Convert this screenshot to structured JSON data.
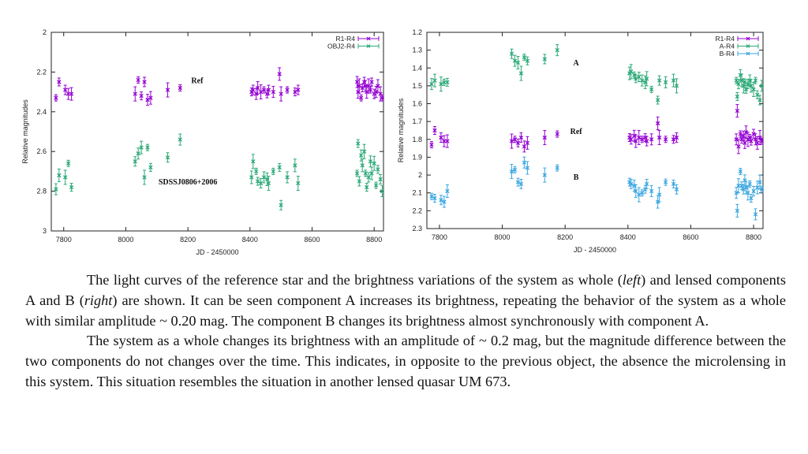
{
  "charts": {
    "left": {
      "ylabel": "Relative magnitudes",
      "xlabel": "JD - 2450000",
      "colors": {
        "R1-R4": "#9400d3",
        "OBJ2-R4": "#2aa876"
      },
      "annotations": [
        {
          "text": "Ref",
          "x": 8230,
          "y": 2.255
        },
        {
          "text": "SDSSJ0806+2006",
          "x": 8200,
          "y": 2.765
        }
      ]
    },
    "right": {
      "ylabel": "Relative magnitudes",
      "xlabel": "JD - 2450000",
      "colors": {
        "R1-R4": "#9400d3",
        "A-R4": "#2aa876",
        "B-R4": "#3aa6e0"
      },
      "annotations": [
        {
          "text": "A",
          "x": 8235,
          "y": 1.385
        },
        {
          "text": "Ref",
          "x": 8235,
          "y": 1.77
        },
        {
          "text": "B",
          "x": 8235,
          "y": 2.025
        }
      ]
    }
  },
  "chart_data": [
    {
      "type": "scatter",
      "xlabel": "JD - 2450000",
      "ylabel": "Relative magnitudes",
      "xlim": [
        7760,
        8830
      ],
      "ylim": [
        3,
        2
      ],
      "y_inverted": true,
      "xticks": [
        "7800",
        "8000",
        "8200",
        "8400",
        "8600",
        "8800"
      ],
      "yticks": [
        "2",
        "2.2",
        "2.4",
        "2.6",
        "2.8",
        "3"
      ],
      "legend_position": "top-right",
      "grid": false,
      "series": [
        {
          "name": "R1-R4",
          "x": [
            7775,
            7785,
            7805,
            7815,
            7825,
            8030,
            8040,
            8050,
            8060,
            8070,
            8080,
            8135,
            8175,
            8405,
            8410,
            8420,
            8425,
            8435,
            8445,
            8455,
            8460,
            8475,
            8495,
            8500,
            8520,
            8545,
            8555,
            8745,
            8748,
            8752,
            8758,
            8762,
            8768,
            8772,
            8776,
            8782,
            8788,
            8792,
            8800,
            8806,
            8812,
            8820,
            8826
          ],
          "y": [
            2.33,
            2.25,
            2.29,
            2.31,
            2.31,
            2.31,
            2.24,
            2.32,
            2.25,
            2.34,
            2.33,
            2.29,
            2.28,
            2.3,
            2.29,
            2.31,
            2.28,
            2.3,
            2.29,
            2.31,
            2.29,
            2.3,
            2.21,
            2.31,
            2.29,
            2.3,
            2.29,
            2.25,
            2.3,
            2.27,
            2.33,
            2.28,
            2.25,
            2.27,
            2.3,
            2.27,
            2.29,
            2.25,
            2.31,
            2.3,
            2.27,
            2.31,
            2.33
          ]
        },
        {
          "name": "OBJ2-R4",
          "x": [
            7775,
            7785,
            7805,
            7815,
            7825,
            8030,
            8040,
            8050,
            8060,
            8070,
            8080,
            8135,
            8175,
            8405,
            8410,
            8420,
            8425,
            8435,
            8445,
            8455,
            8460,
            8475,
            8495,
            8500,
            8520,
            8545,
            8555,
            8745,
            8748,
            8752,
            8758,
            8762,
            8768,
            8772,
            8776,
            8782,
            8788,
            8792,
            8800,
            8806,
            8812,
            8820,
            8826
          ],
          "y": [
            2.79,
            2.72,
            2.73,
            2.66,
            2.78,
            2.65,
            2.61,
            2.58,
            2.73,
            2.58,
            2.68,
            2.63,
            2.54,
            2.73,
            2.65,
            2.7,
            2.75,
            2.76,
            2.73,
            2.74,
            2.76,
            2.7,
            2.68,
            2.87,
            2.73,
            2.67,
            2.76,
            2.71,
            2.56,
            2.75,
            2.62,
            2.67,
            2.6,
            2.71,
            2.78,
            2.73,
            2.65,
            2.71,
            2.66,
            2.77,
            2.69,
            2.74,
            2.8
          ]
        }
      ]
    },
    {
      "type": "scatter",
      "xlabel": "JD - 2450000",
      "ylabel": "Relative magnitudes",
      "xlim": [
        7760,
        8830
      ],
      "ylim": [
        2.3,
        1.2
      ],
      "y_inverted": true,
      "xticks": [
        "7800",
        "8000",
        "8200",
        "8400",
        "8600",
        "8800"
      ],
      "yticks": [
        "1.2",
        "1.3",
        "1.4",
        "1.5",
        "1.6",
        "1.7",
        "1.8",
        "1.9",
        "2",
        "2.1",
        "2.2",
        "2.3"
      ],
      "legend_position": "top-right",
      "grid": false,
      "series": [
        {
          "name": "R1-R4",
          "x": [
            7775,
            7785,
            7805,
            7815,
            7825,
            8030,
            8040,
            8050,
            8060,
            8070,
            8080,
            8135,
            8175,
            8405,
            8410,
            8420,
            8425,
            8435,
            8445,
            8455,
            8460,
            8475,
            8495,
            8500,
            8520,
            8545,
            8555,
            8745,
            8748,
            8752,
            8758,
            8762,
            8768,
            8772,
            8776,
            8782,
            8788,
            8792,
            8800,
            8806,
            8812,
            8820,
            8826
          ],
          "y": [
            1.83,
            1.75,
            1.79,
            1.81,
            1.81,
            1.81,
            1.8,
            1.82,
            1.79,
            1.84,
            1.82,
            1.79,
            1.77,
            1.79,
            1.8,
            1.78,
            1.81,
            1.79,
            1.8,
            1.79,
            1.81,
            1.8,
            1.71,
            1.79,
            1.8,
            1.8,
            1.79,
            1.8,
            1.64,
            1.84,
            1.77,
            1.8,
            1.78,
            1.82,
            1.76,
            1.8,
            1.79,
            1.81,
            1.77,
            1.8,
            1.82,
            1.79,
            1.81
          ]
        },
        {
          "name": "A-R4",
          "x": [
            7775,
            7785,
            7805,
            7815,
            7825,
            8030,
            8040,
            8050,
            8060,
            8070,
            8080,
            8135,
            8175,
            8405,
            8410,
            8420,
            8425,
            8435,
            8445,
            8455,
            8460,
            8475,
            8495,
            8500,
            8520,
            8545,
            8555,
            8745,
            8748,
            8752,
            8758,
            8762,
            8768,
            8772,
            8776,
            8782,
            8788,
            8792,
            8800,
            8806,
            8812,
            8820,
            8826
          ],
          "y": [
            1.49,
            1.47,
            1.49,
            1.48,
            1.48,
            1.32,
            1.36,
            1.37,
            1.43,
            1.34,
            1.36,
            1.35,
            1.3,
            1.43,
            1.42,
            1.44,
            1.46,
            1.45,
            1.47,
            1.48,
            1.46,
            1.52,
            1.58,
            1.47,
            1.48,
            1.47,
            1.5,
            1.47,
            1.56,
            1.49,
            1.44,
            1.47,
            1.5,
            1.48,
            1.52,
            1.49,
            1.47,
            1.5,
            1.52,
            1.47,
            1.55,
            1.58,
            1.5
          ]
        },
        {
          "name": "B-R4",
          "x": [
            7775,
            7785,
            7805,
            7815,
            7825,
            8030,
            8040,
            8050,
            8060,
            8070,
            8080,
            8135,
            8175,
            8405,
            8410,
            8420,
            8425,
            8435,
            8445,
            8455,
            8460,
            8475,
            8495,
            8500,
            8520,
            8545,
            8555,
            8745,
            8748,
            8752,
            8758,
            8762,
            8768,
            8772,
            8776,
            8782,
            8788,
            8792,
            8800,
            8806,
            8812,
            8820,
            8826
          ],
          "y": [
            2.12,
            2.13,
            2.14,
            2.15,
            2.09,
            1.98,
            1.97,
            2.04,
            2.05,
            1.93,
            1.96,
            2.0,
            1.96,
            2.04,
            2.05,
            2.06,
            2.09,
            2.11,
            2.1,
            2.08,
            2.05,
            2.09,
            2.15,
            2.11,
            2.04,
            2.05,
            2.08,
            2.1,
            2.2,
            2.06,
            1.98,
            2.06,
            2.08,
            2.03,
            2.07,
            2.1,
            2.05,
            2.13,
            2.09,
            2.22,
            2.07,
            2.04,
            2.08
          ]
        }
      ]
    }
  ],
  "caption": {
    "p1": {
      "a": "The light curves of the reference star and the brightness variations of the system as whole (",
      "left": "left",
      "b": ") and lensed components A and B (",
      "right": "right",
      "c": ") are shown. It can be seen component A increases its brightness, repeating the behavior of the system as a whole with similar amplitude ~ 0.20 mag. The component B changes its brightness almost synchronously with component A."
    },
    "p2": "The system as a whole changes its brightness with an amplitude of ~ 0.2 mag, but the magnitude difference between the two components do not changes over the time. This indicates, in opposite to the previous object, the absence the microlensing in this system. This situation resembles the situation in another lensed quasar UM 673."
  }
}
